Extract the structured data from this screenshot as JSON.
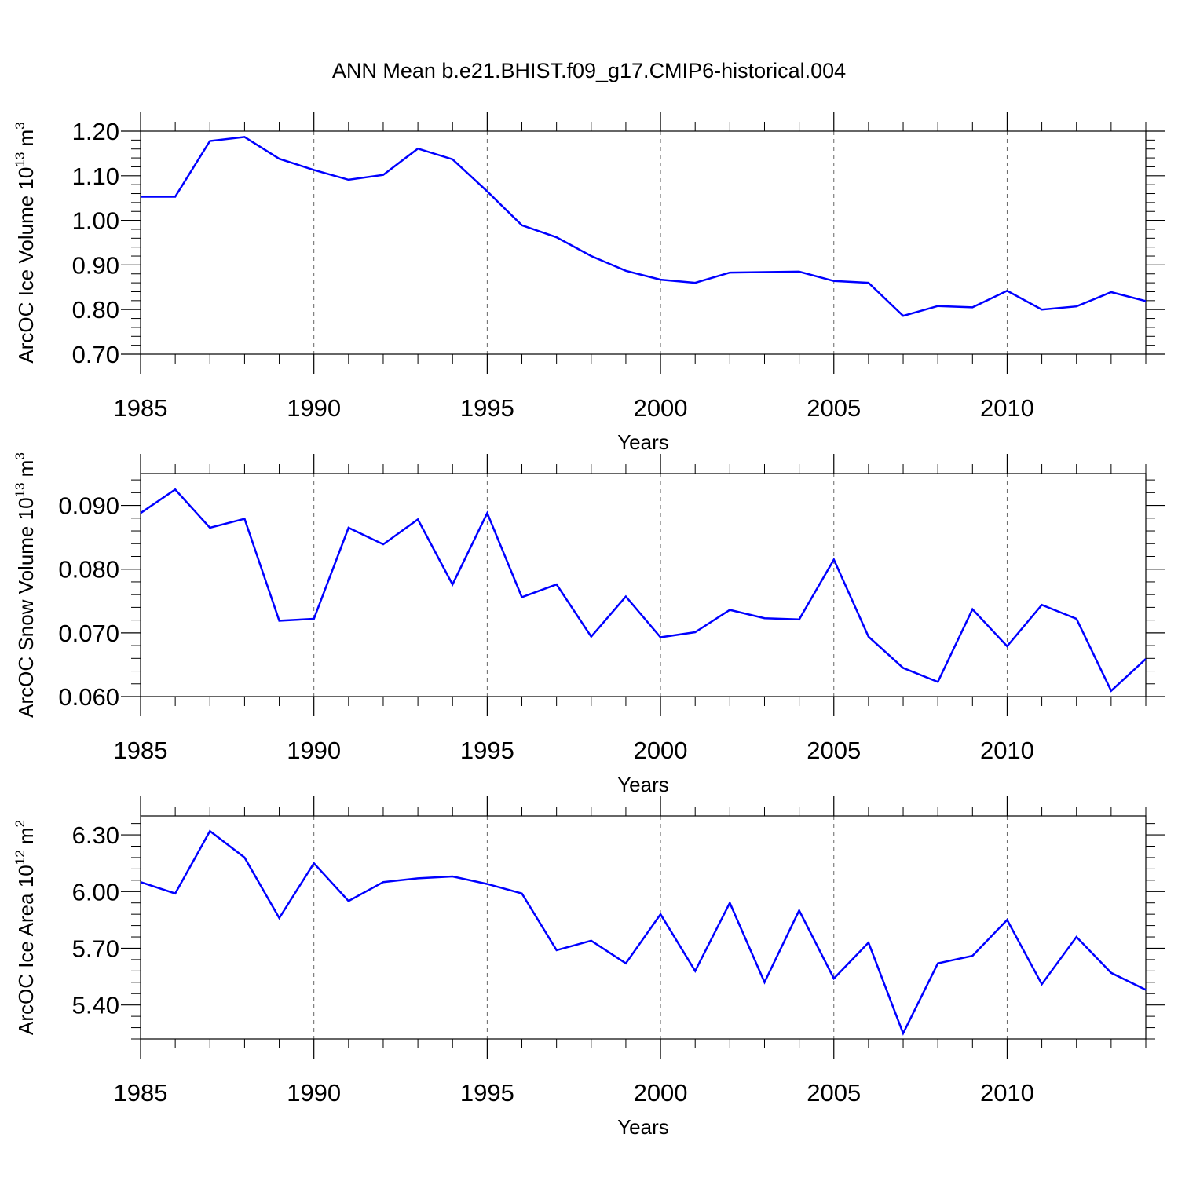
{
  "title": "ANN Mean b.e21.BHIST.f09_g17.CMIP6-historical.004",
  "colors": {
    "series": "#0000ff",
    "frame": "#000000",
    "grid": "#666666"
  },
  "chart_data": [
    {
      "type": "line",
      "ylabel": "ArcOC Ice Volume 10",
      "ylabel_exp": "13",
      "ylabel_unit": " m",
      "ylabel_unit_exp": "3",
      "xlabel": "Years",
      "xlim": [
        1985,
        2014
      ],
      "ylim": [
        0.7,
        1.2
      ],
      "x_ticks": [
        1985,
        1990,
        1995,
        2000,
        2005,
        2010
      ],
      "x_tick_labels": [
        "1985",
        "1990",
        "1995",
        "2000",
        "2005",
        "2010"
      ],
      "y_ticks": [
        0.7,
        0.8,
        0.9,
        1.0,
        1.1,
        1.2
      ],
      "y_tick_labels": [
        "0.70",
        "0.80",
        "0.90",
        "1.00",
        "1.10",
        "1.20"
      ],
      "grid": "dashed vertical lines at major x ticks",
      "x": [
        1985,
        1986,
        1987,
        1988,
        1989,
        1990,
        1991,
        1992,
        1993,
        1994,
        1995,
        1996,
        1997,
        1998,
        1999,
        2000,
        2001,
        2002,
        2003,
        2004,
        2005,
        2006,
        2007,
        2008,
        2009,
        2010,
        2011,
        2012,
        2013,
        2014
      ],
      "y": [
        1.053,
        1.053,
        1.178,
        1.187,
        1.138,
        1.113,
        1.091,
        1.102,
        1.161,
        1.137,
        1.065,
        0.989,
        0.962,
        0.92,
        0.887,
        0.867,
        0.86,
        0.883,
        0.884,
        0.885,
        0.864,
        0.86,
        0.786,
        0.808,
        0.805,
        0.842,
        0.8,
        0.807,
        0.839,
        0.819
      ]
    },
    {
      "type": "line",
      "ylabel": "ArcOC Snow Volume 10",
      "ylabel_exp": "13",
      "ylabel_unit": " m",
      "ylabel_unit_exp": "3",
      "xlabel": "Years",
      "xlim": [
        1985,
        2014
      ],
      "ylim": [
        0.06,
        0.095
      ],
      "x_ticks": [
        1985,
        1990,
        1995,
        2000,
        2005,
        2010
      ],
      "x_tick_labels": [
        "1985",
        "1990",
        "1995",
        "2000",
        "2005",
        "2010"
      ],
      "y_ticks": [
        0.06,
        0.07,
        0.08,
        0.09
      ],
      "y_tick_labels": [
        "0.060",
        "0.070",
        "0.080",
        "0.090"
      ],
      "grid": "dashed vertical lines at major x ticks",
      "x": [
        1985,
        1986,
        1987,
        1988,
        1989,
        1990,
        1991,
        1992,
        1993,
        1994,
        1995,
        1996,
        1997,
        1998,
        1999,
        2000,
        2001,
        2002,
        2003,
        2004,
        2005,
        2006,
        2007,
        2008,
        2009,
        2010,
        2011,
        2012,
        2013,
        2014
      ],
      "y": [
        0.0888,
        0.0925,
        0.0865,
        0.0879,
        0.0719,
        0.0722,
        0.0865,
        0.0839,
        0.0878,
        0.0776,
        0.0888,
        0.0756,
        0.0776,
        0.0694,
        0.0757,
        0.0693,
        0.0701,
        0.0736,
        0.0723,
        0.0721,
        0.0815,
        0.0694,
        0.0645,
        0.0623,
        0.0737,
        0.0679,
        0.0744,
        0.0722,
        0.0609,
        0.0659
      ]
    },
    {
      "type": "line",
      "ylabel": "ArcOC Ice Area 10",
      "ylabel_exp": "12",
      "ylabel_unit": " m",
      "ylabel_unit_exp": "2",
      "xlabel": "Years",
      "xlim": [
        1985,
        2014
      ],
      "ylim": [
        5.22,
        6.4
      ],
      "x_ticks": [
        1985,
        1990,
        1995,
        2000,
        2005,
        2010
      ],
      "x_tick_labels": [
        "1985",
        "1990",
        "1995",
        "2000",
        "2005",
        "2010"
      ],
      "y_ticks": [
        5.4,
        5.7,
        6.0,
        6.3
      ],
      "y_tick_labels": [
        "5.40",
        "5.70",
        "6.00",
        "6.30"
      ],
      "grid": "dashed vertical lines at major x ticks",
      "x": [
        1985,
        1986,
        1987,
        1988,
        1989,
        1990,
        1991,
        1992,
        1993,
        1994,
        1995,
        1996,
        1997,
        1998,
        1999,
        2000,
        2001,
        2002,
        2003,
        2004,
        2005,
        2006,
        2007,
        2008,
        2009,
        2010,
        2011,
        2012,
        2013,
        2014
      ],
      "y": [
        6.05,
        5.99,
        6.32,
        6.18,
        5.86,
        6.15,
        5.95,
        6.05,
        6.07,
        6.08,
        6.04,
        5.99,
        5.69,
        5.74,
        5.62,
        5.88,
        5.58,
        5.94,
        5.52,
        5.9,
        5.54,
        5.73,
        5.25,
        5.62,
        5.66,
        5.85,
        5.51,
        5.76,
        5.57,
        5.48
      ]
    }
  ]
}
